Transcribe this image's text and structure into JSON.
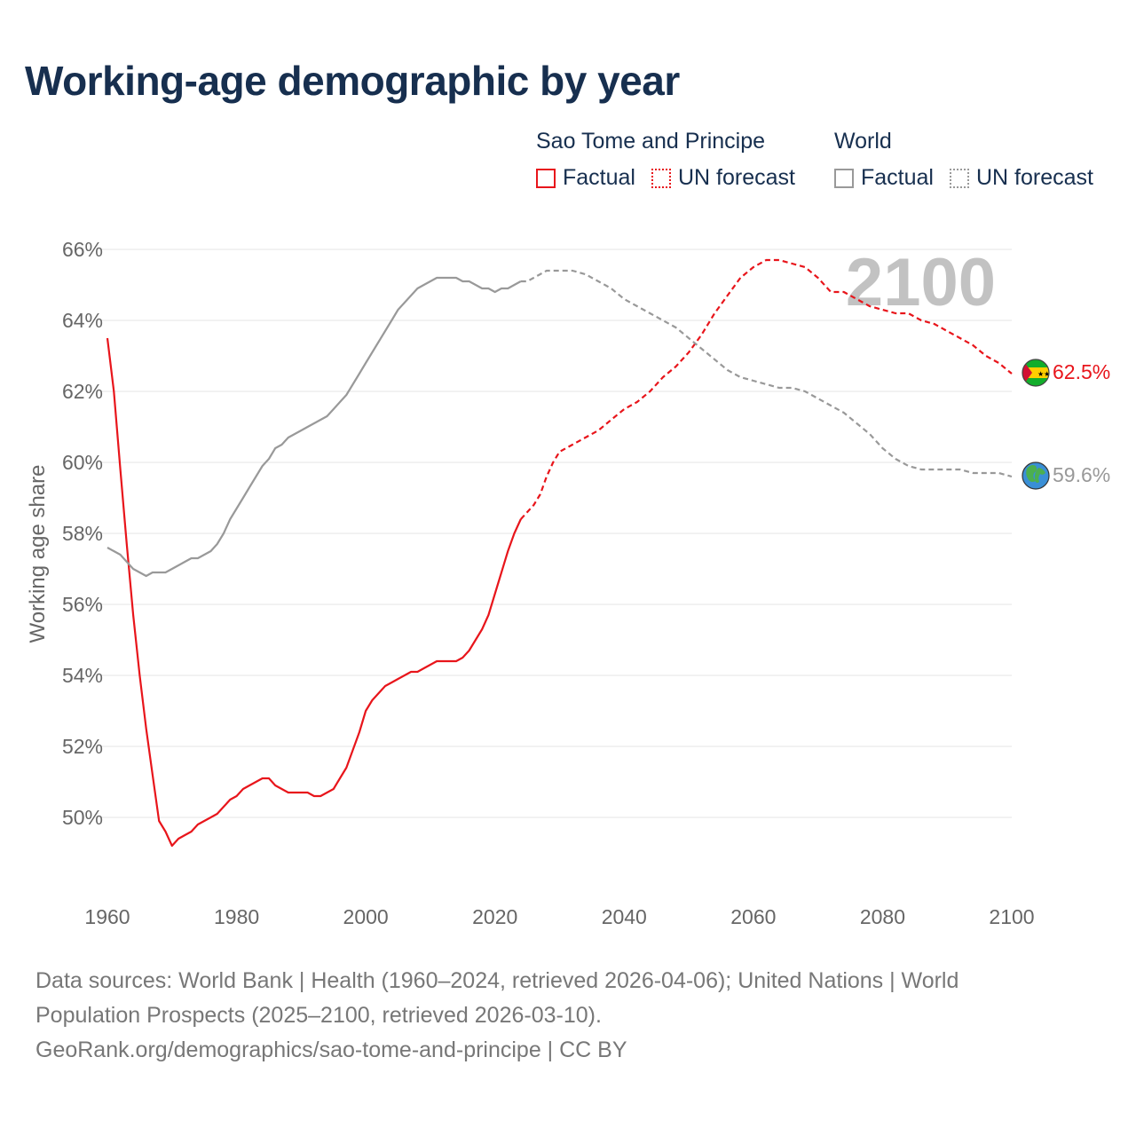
{
  "title": "Working-age demographic by year",
  "legend": {
    "groups": [
      {
        "name": "Sao Tome and Principe",
        "factual": "Factual",
        "forecast": "UN forecast"
      },
      {
        "name": "World",
        "factual": "Factual",
        "forecast": "UN forecast"
      }
    ]
  },
  "year_watermark": "2100",
  "end_labels": {
    "stp": "62.5%",
    "world": "59.6%"
  },
  "source": {
    "line1": "Data sources: World Bank | Health (1960–2024, retrieved 2026-04-06); United Nations | World",
    "line2": "Population Prospects (2025–2100, retrieved 2026-03-10).",
    "line3": "GeoRank.org/demographics/sao-tome-and-principe | CC BY"
  },
  "colors": {
    "stp": "#e8151b",
    "world": "#999999",
    "title": "#172f4f",
    "grid": "#e6e6e6",
    "axis_text": "#666666"
  },
  "chart_data": {
    "type": "line",
    "title": "Working-age demographic by year",
    "xlabel": "",
    "ylabel": "Working age share",
    "xlim": [
      1960,
      2100
    ],
    "ylim": [
      48,
      67
    ],
    "x_ticks": [
      1960,
      1980,
      2000,
      2020,
      2040,
      2060,
      2080,
      2100
    ],
    "y_ticks": [
      50,
      52,
      54,
      56,
      58,
      60,
      62,
      64,
      66
    ],
    "y_tick_labels": [
      "50%",
      "52%",
      "54%",
      "56%",
      "58%",
      "60%",
      "62%",
      "64%",
      "66%"
    ],
    "x_tick_labels": [
      "1960",
      "1980",
      "2000",
      "2020",
      "2040",
      "2060",
      "2080",
      "2100"
    ],
    "series": [
      {
        "name": "Sao Tome and Principe",
        "style": "factual",
        "x": [
          1960,
          1961,
          1962,
          1963,
          1964,
          1965,
          1966,
          1967,
          1968,
          1969,
          1970,
          1971,
          1972,
          1973,
          1974,
          1975,
          1976,
          1977,
          1978,
          1979,
          1980,
          1981,
          1982,
          1983,
          1984,
          1985,
          1986,
          1987,
          1988,
          1989,
          1990,
          1991,
          1992,
          1993,
          1994,
          1995,
          1996,
          1997,
          1998,
          1999,
          2000,
          2001,
          2002,
          2003,
          2004,
          2005,
          2006,
          2007,
          2008,
          2009,
          2010,
          2011,
          2012,
          2013,
          2014,
          2015,
          2016,
          2017,
          2018,
          2019,
          2020,
          2021,
          2022,
          2023,
          2024
        ],
        "y": [
          63.5,
          62.0,
          59.8,
          57.7,
          55.7,
          54.0,
          52.5,
          51.2,
          49.9,
          49.6,
          49.2,
          49.4,
          49.5,
          49.6,
          49.8,
          49.9,
          50.0,
          50.1,
          50.3,
          50.5,
          50.6,
          50.8,
          50.9,
          51.0,
          51.1,
          51.1,
          50.9,
          50.8,
          50.7,
          50.7,
          50.7,
          50.7,
          50.6,
          50.6,
          50.7,
          50.8,
          51.1,
          51.4,
          51.9,
          52.4,
          53.0,
          53.3,
          53.5,
          53.7,
          53.8,
          53.9,
          54.0,
          54.1,
          54.1,
          54.2,
          54.3,
          54.4,
          54.4,
          54.4,
          54.4,
          54.5,
          54.7,
          55.0,
          55.3,
          55.7,
          56.3,
          56.9,
          57.5,
          58.0,
          58.4
        ]
      },
      {
        "name": "Sao Tome and Principe",
        "style": "forecast",
        "x": [
          2024,
          2025,
          2026,
          2027,
          2028,
          2029,
          2030,
          2032,
          2034,
          2036,
          2038,
          2040,
          2042,
          2044,
          2046,
          2048,
          2050,
          2052,
          2054,
          2056,
          2058,
          2060,
          2062,
          2064,
          2066,
          2068,
          2070,
          2072,
          2074,
          2076,
          2078,
          2080,
          2082,
          2084,
          2086,
          2088,
          2090,
          2092,
          2094,
          2096,
          2098,
          2100
        ],
        "y": [
          58.4,
          58.6,
          58.8,
          59.1,
          59.6,
          60.0,
          60.3,
          60.5,
          60.7,
          60.9,
          61.2,
          61.5,
          61.7,
          62.0,
          62.4,
          62.7,
          63.1,
          63.6,
          64.2,
          64.7,
          65.2,
          65.5,
          65.7,
          65.7,
          65.6,
          65.5,
          65.2,
          64.8,
          64.8,
          64.6,
          64.4,
          64.3,
          64.2,
          64.2,
          64.0,
          63.9,
          63.7,
          63.5,
          63.3,
          63.0,
          62.8,
          62.5
        ]
      },
      {
        "name": "World",
        "style": "factual",
        "x": [
          1960,
          1961,
          1962,
          1963,
          1964,
          1965,
          1966,
          1967,
          1968,
          1969,
          1970,
          1971,
          1972,
          1973,
          1974,
          1975,
          1976,
          1977,
          1978,
          1979,
          1980,
          1981,
          1982,
          1983,
          1984,
          1985,
          1986,
          1987,
          1988,
          1989,
          1990,
          1991,
          1992,
          1993,
          1994,
          1995,
          1996,
          1997,
          1998,
          1999,
          2000,
          2001,
          2002,
          2003,
          2004,
          2005,
          2006,
          2007,
          2008,
          2009,
          2010,
          2011,
          2012,
          2013,
          2014,
          2015,
          2016,
          2017,
          2018,
          2019,
          2020,
          2021,
          2022,
          2023,
          2024
        ],
        "y": [
          57.6,
          57.5,
          57.4,
          57.2,
          57.0,
          56.9,
          56.8,
          56.9,
          56.9,
          56.9,
          57.0,
          57.1,
          57.2,
          57.3,
          57.3,
          57.4,
          57.5,
          57.7,
          58.0,
          58.4,
          58.7,
          59.0,
          59.3,
          59.6,
          59.9,
          60.1,
          60.4,
          60.5,
          60.7,
          60.8,
          60.9,
          61.0,
          61.1,
          61.2,
          61.3,
          61.5,
          61.7,
          61.9,
          62.2,
          62.5,
          62.8,
          63.1,
          63.4,
          63.7,
          64.0,
          64.3,
          64.5,
          64.7,
          64.9,
          65.0,
          65.1,
          65.2,
          65.2,
          65.2,
          65.2,
          65.1,
          65.1,
          65.0,
          64.9,
          64.9,
          64.8,
          64.9,
          64.9,
          65.0,
          65.1
        ]
      },
      {
        "name": "World",
        "style": "forecast",
        "x": [
          2024,
          2025,
          2026,
          2028,
          2030,
          2032,
          2034,
          2036,
          2038,
          2040,
          2042,
          2044,
          2046,
          2048,
          2050,
          2052,
          2054,
          2056,
          2058,
          2060,
          2062,
          2064,
          2066,
          2068,
          2070,
          2072,
          2074,
          2076,
          2078,
          2080,
          2082,
          2084,
          2086,
          2088,
          2090,
          2092,
          2094,
          2096,
          2098,
          2100
        ],
        "y": [
          65.1,
          65.1,
          65.2,
          65.4,
          65.4,
          65.4,
          65.3,
          65.1,
          64.9,
          64.6,
          64.4,
          64.2,
          64.0,
          63.8,
          63.5,
          63.2,
          62.9,
          62.6,
          62.4,
          62.3,
          62.2,
          62.1,
          62.1,
          62.0,
          61.8,
          61.6,
          61.4,
          61.1,
          60.8,
          60.4,
          60.1,
          59.9,
          59.8,
          59.8,
          59.8,
          59.8,
          59.7,
          59.7,
          59.7,
          59.6
        ]
      }
    ]
  }
}
